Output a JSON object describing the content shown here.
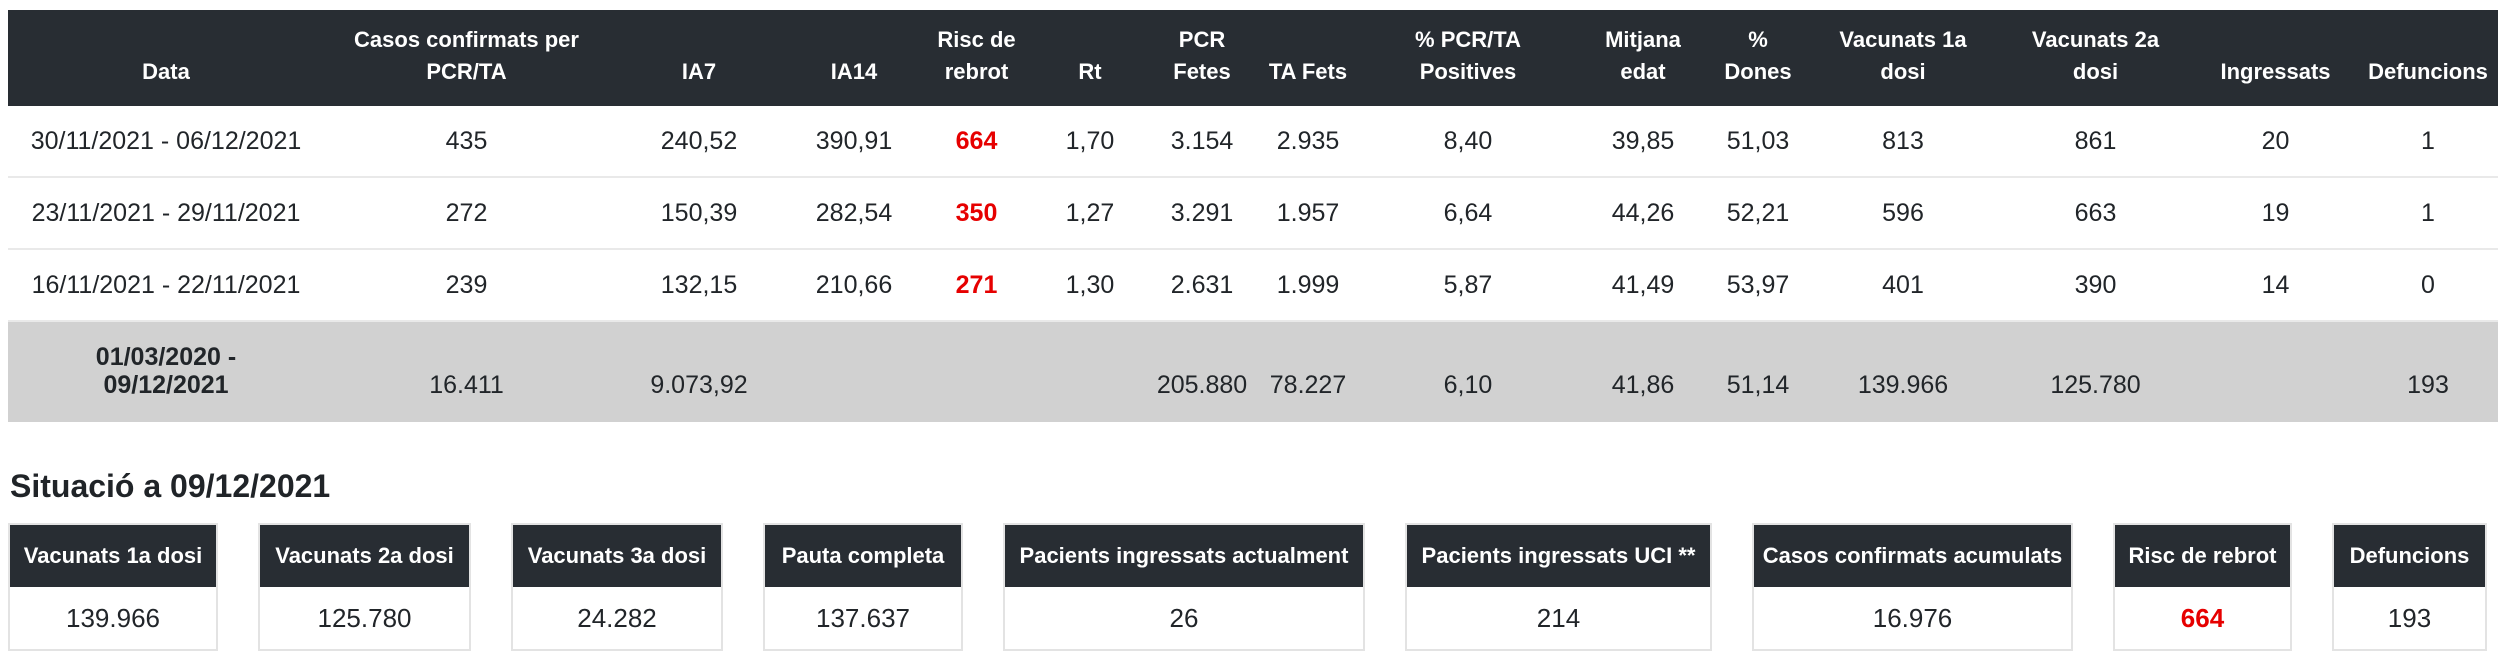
{
  "table": {
    "headers": [
      "Data",
      "Casos confirmats per PCR/TA",
      "IA7",
      "IA14",
      "Risc de rebrot",
      "Rt",
      "PCR Fetes",
      "TA Fets",
      "% PCR/TA Positives",
      "Mitjana edat",
      "% Dones",
      "Vacunats 1a dosi",
      "Vacunats 2a dosi",
      "Ingressats",
      "Defuncions"
    ],
    "highlight_column": "Risc de rebrot",
    "rows": [
      [
        "30/11/2021 - 06/12/2021",
        "435",
        "240,52",
        "390,91",
        "664",
        "1,70",
        "3.154",
        "2.935",
        "8,40",
        "39,85",
        "51,03",
        "813",
        "861",
        "20",
        "1"
      ],
      [
        "23/11/2021 - 29/11/2021",
        "272",
        "150,39",
        "282,54",
        "350",
        "1,27",
        "3.291",
        "1.957",
        "6,64",
        "44,26",
        "52,21",
        "596",
        "663",
        "19",
        "1"
      ],
      [
        "16/11/2021 - 22/11/2021",
        "239",
        "132,15",
        "210,66",
        "271",
        "1,30",
        "2.631",
        "1.999",
        "5,87",
        "41,49",
        "53,97",
        "401",
        "390",
        "14",
        "0"
      ]
    ],
    "totals_row": [
      "01/03/2020 - 09/12/2021",
      "16.411",
      "9.073,92",
      "",
      "",
      "",
      "205.880",
      "78.227",
      "6,10",
      "41,86",
      "51,14",
      "139.966",
      "125.780",
      "",
      "193"
    ]
  },
  "situation": {
    "title": "Situació a 09/12/2021",
    "cards": [
      {
        "label": "Vacunats 1a dosi",
        "value": "139.966",
        "highlight": false
      },
      {
        "label": "Vacunats 2a dosi",
        "value": "125.780",
        "highlight": false
      },
      {
        "label": "Vacunats 3a dosi",
        "value": "24.282",
        "highlight": false
      },
      {
        "label": "Pauta completa",
        "value": "137.637",
        "highlight": false
      },
      {
        "label": "Pacients ingressats actualment",
        "value": "26",
        "highlight": false
      },
      {
        "label": "Pacients ingressats UCI **",
        "value": "214",
        "highlight": false
      },
      {
        "label": "Casos confirmats acumulats",
        "value": "16.976",
        "highlight": false
      },
      {
        "label": "Risc de rebrot",
        "value": "664",
        "highlight": true
      },
      {
        "label": "Defuncions",
        "value": "193",
        "highlight": false
      }
    ]
  },
  "colors": {
    "accent_red": "#e60000",
    "table_header_bg": "#282d33",
    "totals_row_bg": "#d1d1d1"
  }
}
